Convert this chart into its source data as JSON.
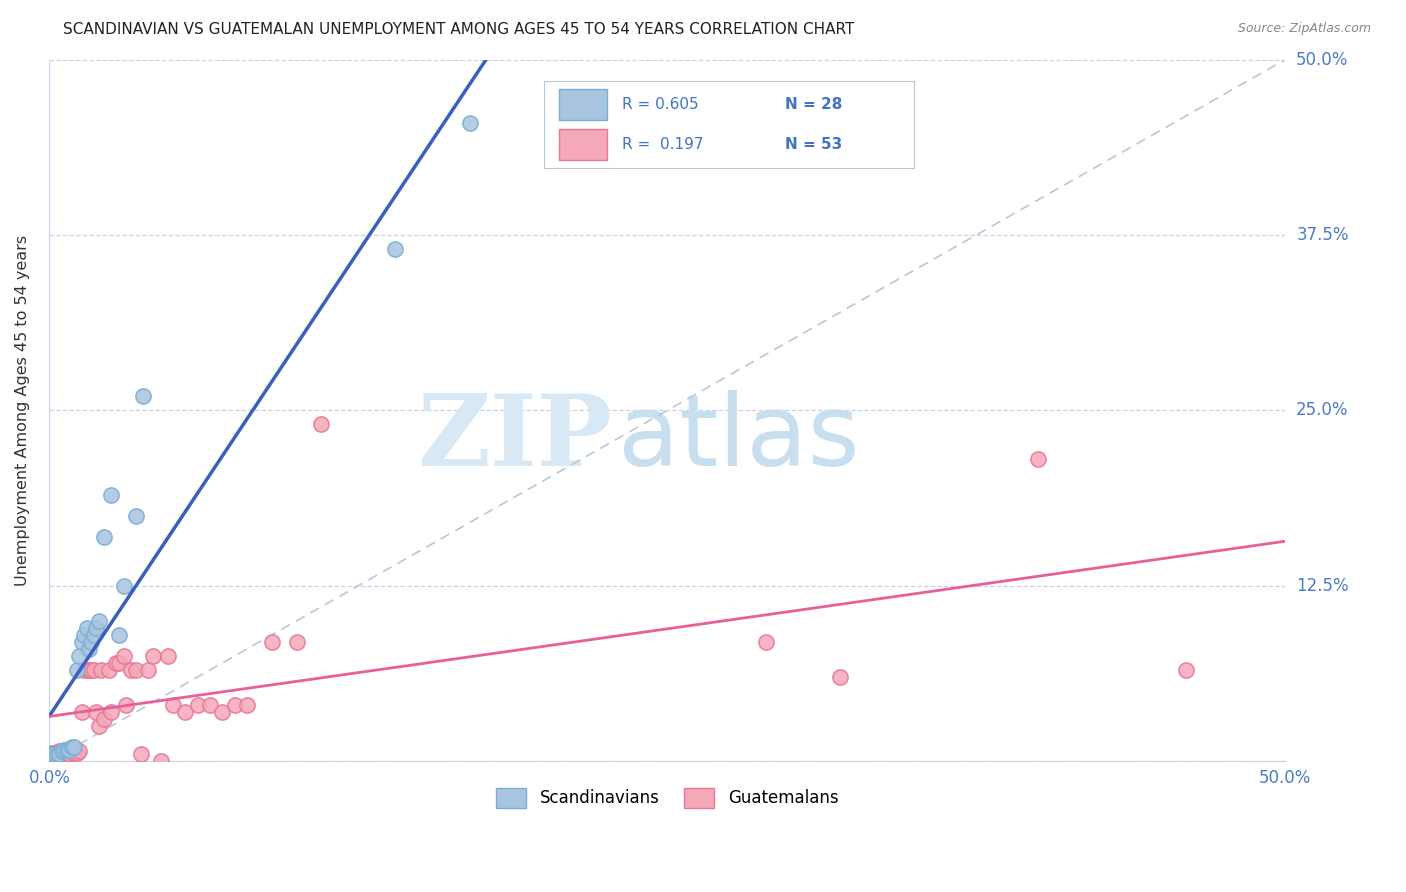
{
  "title": "SCANDINAVIAN VS GUATEMALAN UNEMPLOYMENT AMONG AGES 45 TO 54 YEARS CORRELATION CHART",
  "source": "Source: ZipAtlas.com",
  "ylabel": "Unemployment Among Ages 45 to 54 years",
  "xlim": [
    0.0,
    0.5
  ],
  "ylim": [
    0.0,
    0.5
  ],
  "yticks": [
    0.0,
    0.125,
    0.25,
    0.375,
    0.5
  ],
  "ytick_labels": [
    "",
    "12.5%",
    "25.0%",
    "37.5%",
    "50.0%"
  ],
  "xticks": [
    0.0,
    0.125,
    0.25,
    0.375,
    0.5
  ],
  "xtick_labels": [
    "0.0%",
    "",
    "",
    "",
    "50.0%"
  ],
  "scandinavian_color": "#a8c4e0",
  "scandinavian_edge_color": "#7bafd4",
  "guatemalan_color": "#f4a8b8",
  "guatemalan_edge_color": "#e87898",
  "scandinavian_line_color": "#3a5fbf",
  "guatemalan_line_color": "#e8609a",
  "diagonal_color": "#b8c8d8",
  "R_scandinavian": 0.605,
  "N_scandinavian": 28,
  "R_guatemalan": 0.197,
  "N_guatemalan": 53,
  "legend_label_scandinavian": "Scandinavians",
  "legend_label_guatemalan": "Guatemalans",
  "watermark_zip": "ZIP",
  "watermark_atlas": "atlas",
  "scandinavian_x": [
    0.001,
    0.002,
    0.003,
    0.004,
    0.005,
    0.006,
    0.007,
    0.008,
    0.009,
    0.01,
    0.011,
    0.012,
    0.013,
    0.014,
    0.015,
    0.016,
    0.017,
    0.018,
    0.019,
    0.02,
    0.022,
    0.025,
    0.028,
    0.03,
    0.035,
    0.038,
    0.14,
    0.17
  ],
  "scandinavian_y": [
    0.005,
    0.005,
    0.005,
    0.005,
    0.007,
    0.008,
    0.008,
    0.008,
    0.01,
    0.01,
    0.065,
    0.075,
    0.085,
    0.09,
    0.095,
    0.08,
    0.085,
    0.09,
    0.095,
    0.1,
    0.16,
    0.19,
    0.09,
    0.125,
    0.175,
    0.26,
    0.365,
    0.455
  ],
  "guatemalan_x": [
    0.0,
    0.001,
    0.001,
    0.002,
    0.003,
    0.004,
    0.005,
    0.005,
    0.006,
    0.007,
    0.008,
    0.009,
    0.01,
    0.01,
    0.011,
    0.012,
    0.013,
    0.014,
    0.015,
    0.016,
    0.017,
    0.018,
    0.019,
    0.02,
    0.021,
    0.022,
    0.024,
    0.025,
    0.027,
    0.028,
    0.03,
    0.031,
    0.033,
    0.035,
    0.037,
    0.04,
    0.042,
    0.045,
    0.048,
    0.05,
    0.055,
    0.06,
    0.065,
    0.07,
    0.075,
    0.08,
    0.09,
    0.1,
    0.11,
    0.29,
    0.32,
    0.4,
    0.46
  ],
  "guatemalan_y": [
    0.005,
    0.005,
    0.006,
    0.006,
    0.006,
    0.007,
    0.007,
    0.006,
    0.006,
    0.006,
    0.005,
    0.007,
    0.006,
    0.006,
    0.006,
    0.007,
    0.035,
    0.065,
    0.065,
    0.065,
    0.065,
    0.065,
    0.035,
    0.025,
    0.065,
    0.03,
    0.065,
    0.035,
    0.07,
    0.07,
    0.075,
    0.04,
    0.065,
    0.065,
    0.005,
    0.065,
    0.075,
    0.0,
    0.075,
    0.04,
    0.035,
    0.04,
    0.04,
    0.035,
    0.04,
    0.04,
    0.085,
    0.085,
    0.24,
    0.085,
    0.06,
    0.215,
    0.065
  ]
}
